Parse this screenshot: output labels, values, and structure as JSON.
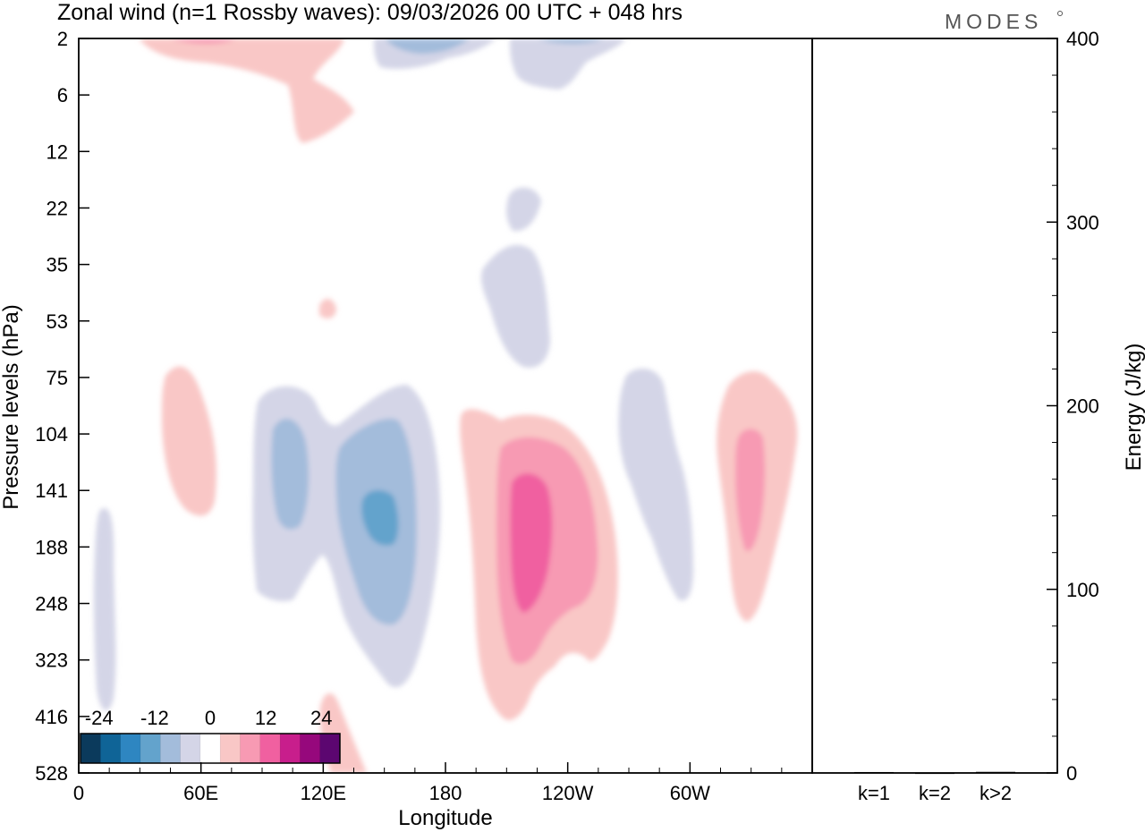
{
  "header": {
    "title": "Zonal wind (n=1 Rossby waves):  09/03/2026  00 UTC  + 048 hrs",
    "brand": "MODES"
  },
  "chart_data": [
    {
      "type": "heatmap",
      "title": "Zonal wind (n=1 Rossby waves):  09/03/2026  00 UTC  + 048 hrs",
      "xlabel": "Longitude",
      "ylabel": "Pressure levels (hPa)",
      "x_ticks": [
        "0",
        "60E",
        "120E",
        "180",
        "120W",
        "60W"
      ],
      "x_tick_degrees": [
        0,
        60,
        120,
        180,
        240,
        300
      ],
      "x_range_degrees": [
        0,
        360
      ],
      "y_levels_hpa": [
        2,
        6,
        12,
        22,
        35,
        53,
        75,
        104,
        141,
        188,
        248,
        323,
        416,
        528
      ],
      "colorbar": {
        "tick_labels": [
          "-24",
          "-12",
          "0",
          "12",
          "24"
        ],
        "tick_values": [
          -24,
          -12,
          0,
          12,
          24
        ],
        "levels": [
          -28,
          -24,
          -20,
          -16,
          -12,
          -8,
          -4,
          4,
          8,
          12,
          16,
          20,
          24,
          28
        ],
        "colors": [
          "#0b3a5c",
          "#0f6497",
          "#2e86c1",
          "#63a3cc",
          "#a3bcdb",
          "#d4d5e7",
          "#ffffff",
          "#f9c7c6",
          "#f79ab3",
          "#f060a0",
          "#c81e8c",
          "#96087c",
          "#5c0670"
        ]
      },
      "features": [
        {
          "lon_center": 22,
          "level_center_hpa": 280,
          "value": -4
        },
        {
          "lon_center": 100,
          "level_center_hpa": 140,
          "value": -12
        },
        {
          "lon_center": 150,
          "level_center_hpa": 150,
          "value": -16
        },
        {
          "lon_center": 226,
          "level_center_hpa": 170,
          "value": 16
        },
        {
          "lon_center": 330,
          "level_center_hpa": 140,
          "value": 12
        },
        {
          "lon_center": 62,
          "level_center_hpa": 120,
          "value": 4
        },
        {
          "lon_center": 295,
          "level_center_hpa": 140,
          "value": -4
        },
        {
          "lon_center": 225,
          "level_center_hpa": 40,
          "value": -4
        },
        {
          "lon_center": 95,
          "level_center_hpa": 5,
          "value": 4
        },
        {
          "lon_center": 165,
          "level_center_hpa": 3,
          "value": -8
        },
        {
          "lon_center": 230,
          "level_center_hpa": 3,
          "value": -8
        }
      ]
    },
    {
      "type": "bar",
      "categories": [
        "k=1",
        "k=2",
        "k>2"
      ],
      "values": [
        0.5,
        0.2,
        0.6
      ],
      "ylabel": "Energy (J/kg)",
      "ylim": [
        0,
        400
      ],
      "y_ticks": [
        "0",
        "100",
        "200",
        "300",
        "400"
      ]
    }
  ]
}
